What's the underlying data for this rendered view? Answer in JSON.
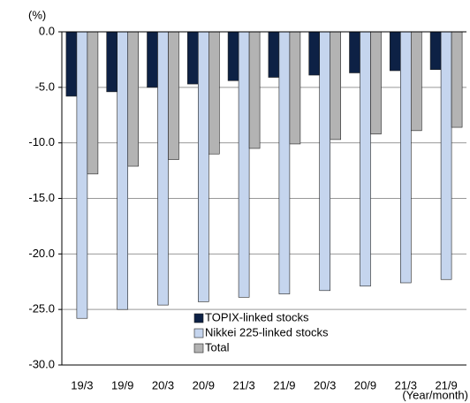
{
  "chart_data": {
    "type": "bar",
    "y_label": "(%)",
    "x_label": "(Year/month)",
    "categories": [
      "19/3",
      "19/9",
      "20/3",
      "20/9",
      "21/3",
      "21/9",
      "20/3",
      "20/9",
      "21/3",
      "21/9"
    ],
    "series": [
      {
        "name": "TOPIX-linked stocks",
        "color": "#0d2145",
        "values": [
          -5.8,
          -5.4,
          -5.0,
          -4.7,
          -4.4,
          -4.1,
          -3.9,
          -3.7,
          -3.5,
          -3.4
        ]
      },
      {
        "name": "Nikkei 225-linked stocks",
        "color": "#c5d5ee",
        "values": [
          -25.8,
          -25.0,
          -24.6,
          -24.3,
          -23.9,
          -23.6,
          -23.3,
          -22.9,
          -22.6,
          -22.3
        ]
      },
      {
        "name": "Total",
        "color": "#b3b3b3",
        "values": [
          -12.8,
          -12.1,
          -11.5,
          -11.0,
          -10.5,
          -10.1,
          -9.7,
          -9.2,
          -8.9,
          -8.6
        ]
      }
    ],
    "ylim": [
      -30,
      0
    ],
    "yticks": [
      {
        "value": 0,
        "label": "0.0"
      },
      {
        "value": -5,
        "label": "-5.0"
      },
      {
        "value": -10,
        "label": "-10.0"
      },
      {
        "value": -15,
        "label": "-15.0"
      },
      {
        "value": -20,
        "label": "-20.0"
      },
      {
        "value": -25,
        "label": "-25.0"
      },
      {
        "value": -30,
        "label": "-30.0"
      }
    ],
    "grid": true,
    "legend_position": "bottom"
  }
}
